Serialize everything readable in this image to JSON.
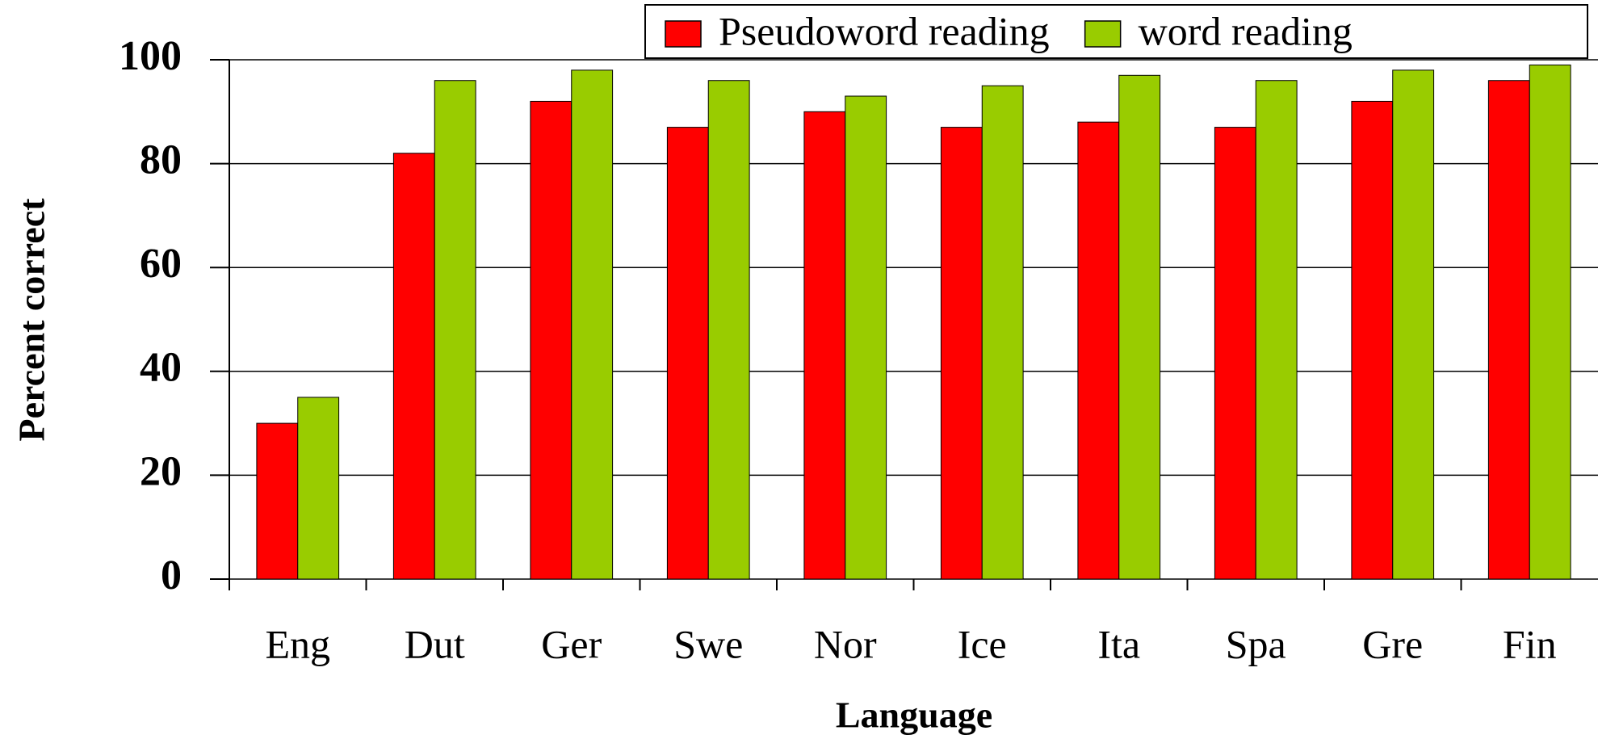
{
  "chart_data": {
    "type": "bar",
    "categories": [
      "Eng",
      "Dut",
      "Ger",
      "Swe",
      "Nor",
      "Ice",
      "Ita",
      "Spa",
      "Gre",
      "Fin"
    ],
    "series": [
      {
        "name": "Pseudoword reading",
        "color": "#ff0000",
        "values": [
          30,
          82,
          92,
          87,
          90,
          87,
          88,
          87,
          92,
          96
        ]
      },
      {
        "name": "word reading",
        "color": "#99cc00",
        "values": [
          35,
          96,
          98,
          96,
          93,
          95,
          97,
          96,
          98,
          99
        ]
      }
    ],
    "xlabel": "Language",
    "ylabel": "Percent correct",
    "ylim": [
      0,
      100
    ],
    "yticks": [
      0,
      20,
      40,
      60,
      80,
      100
    ],
    "grid": true,
    "legend": "top-right"
  }
}
